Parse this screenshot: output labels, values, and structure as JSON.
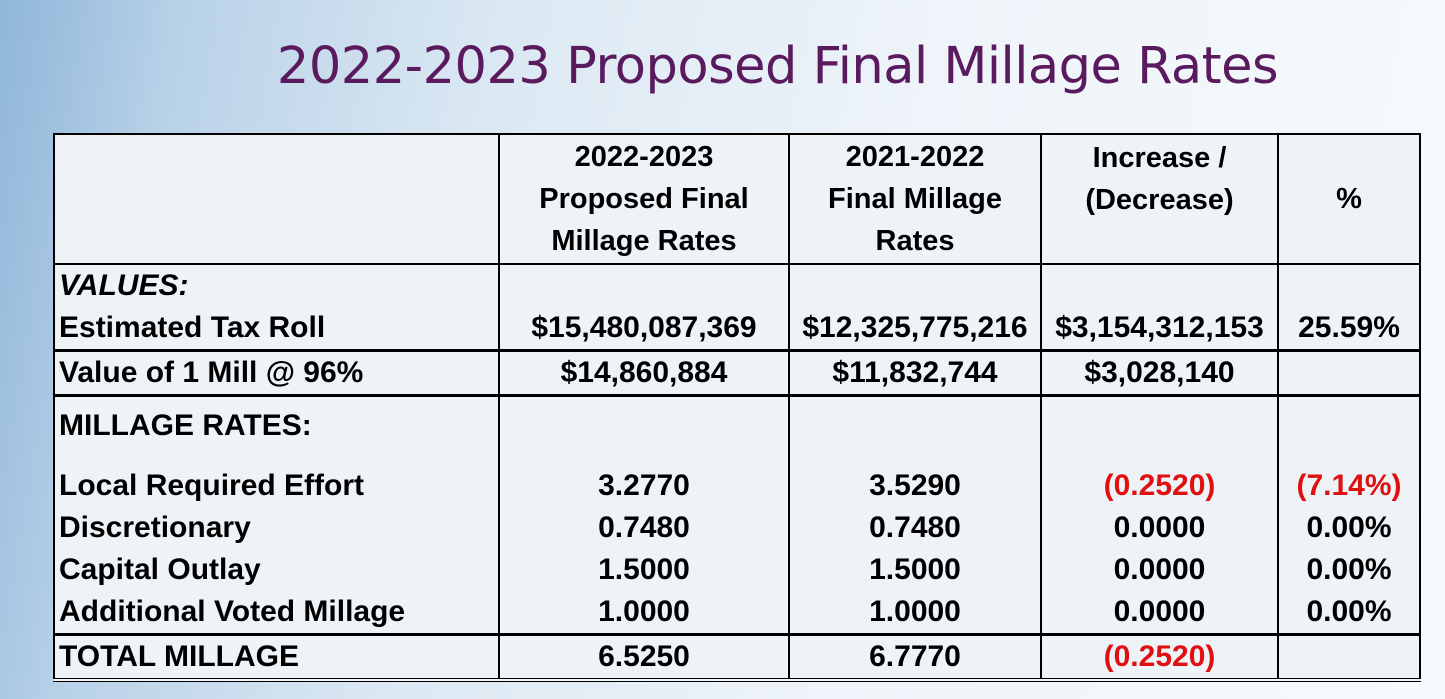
{
  "title": "2022-2023 Proposed Final Millage Rates",
  "table": {
    "headers": [
      {
        "lines": [
          ""
        ]
      },
      {
        "lines": [
          "2022-2023",
          "Proposed Final",
          "Millage Rates"
        ]
      },
      {
        "lines": [
          "2021-2022",
          "Final Millage",
          "Rates"
        ]
      },
      {
        "lines": [
          "Increase /",
          "(Decrease)"
        ]
      },
      {
        "lines": [
          "%"
        ]
      }
    ],
    "values_heading": "VALUES:",
    "estimated_tax_roll": {
      "label": "Estimated Tax Roll",
      "proposed": "$15,480,087,369",
      "prior": "$12,325,775,216",
      "change": "$3,154,312,153",
      "pct": "25.59%"
    },
    "value_of_mill": {
      "label": "Value of 1 Mill @ 96%",
      "proposed": "$14,860,884",
      "prior": "$11,832,744",
      "change": "$3,028,140",
      "pct": ""
    },
    "millage_heading": "MILLAGE RATES:",
    "rates": [
      {
        "label": "Local Required Effort",
        "proposed": "3.2770",
        "prior": "3.5290",
        "change": "(0.2520)",
        "pct": "(7.14%)",
        "negative": true
      },
      {
        "label": "Discretionary",
        "proposed": "0.7480",
        "prior": "0.7480",
        "change": "0.0000",
        "pct": "0.00%",
        "negative": false
      },
      {
        "label": "Capital Outlay",
        "proposed": "1.5000",
        "prior": "1.5000",
        "change": "0.0000",
        "pct": "0.00%",
        "negative": false
      },
      {
        "label": "Additional Voted Millage",
        "proposed": "1.0000",
        "prior": "1.0000",
        "change": "0.0000",
        "pct": "0.00%",
        "negative": false
      }
    ],
    "total": {
      "label": "TOTAL MILLAGE",
      "proposed": "6.5250",
      "prior": "6.7770",
      "change": "(0.2520)",
      "pct": ""
    }
  },
  "colors": {
    "title": "#5a1a5e",
    "negative": "#e01010",
    "table_background": "#eef3f8"
  }
}
